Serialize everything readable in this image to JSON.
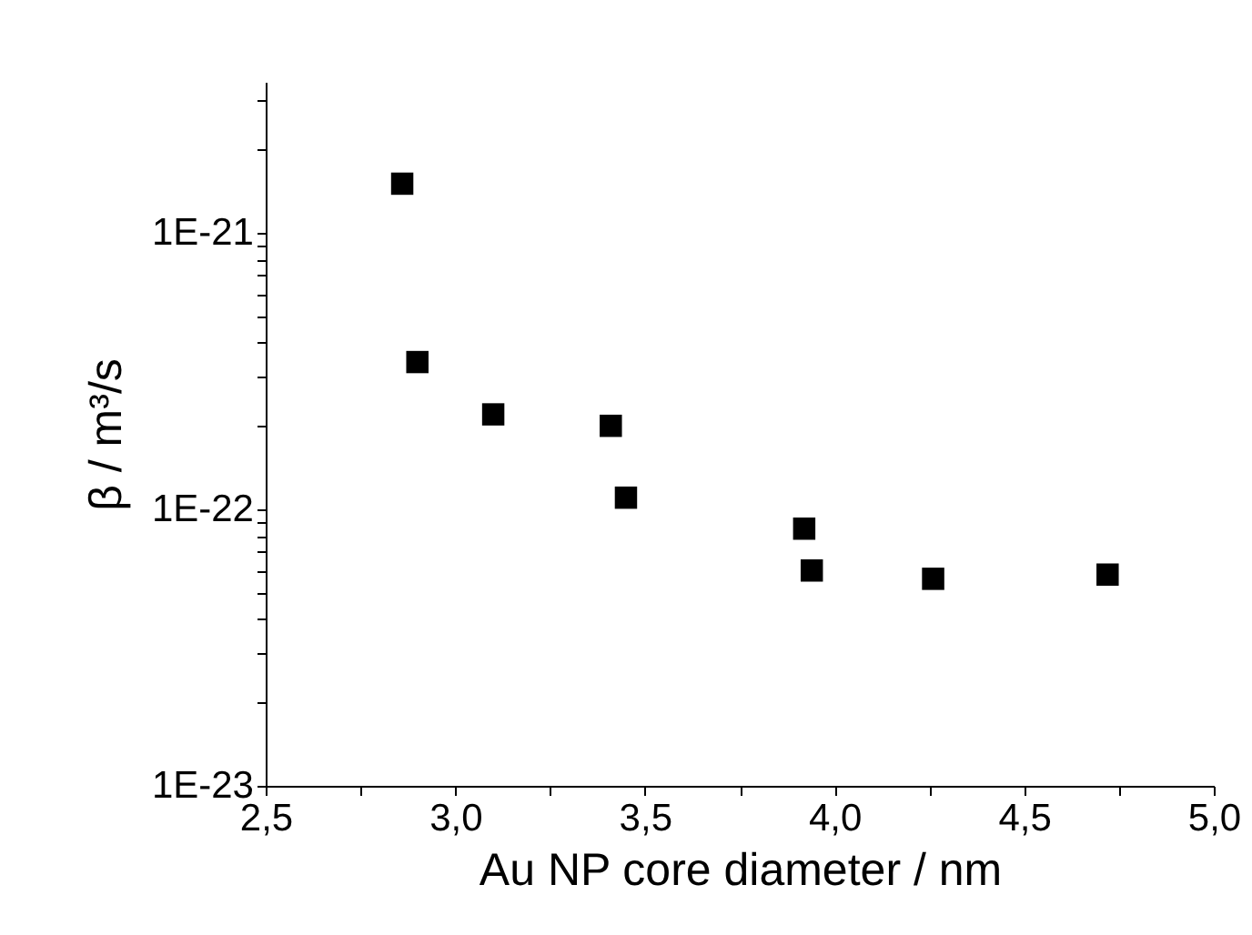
{
  "chart_data": {
    "type": "scatter",
    "xlabel": "Au NP core diameter / nm",
    "ylabel": "β / m³/s",
    "log": "y",
    "marker": "square",
    "grid": false,
    "xlim": [
      2.5,
      5.0
    ],
    "xticks": [
      {
        "value": 2.5,
        "label": "2,5"
      },
      {
        "value": 2.75,
        "label": null
      },
      {
        "value": 3.0,
        "label": "3,0"
      },
      {
        "value": 3.25,
        "label": null
      },
      {
        "value": 3.5,
        "label": "3,5"
      },
      {
        "value": 3.75,
        "label": null
      },
      {
        "value": 4.0,
        "label": "4,0"
      },
      {
        "value": 4.25,
        "label": null
      },
      {
        "value": 4.5,
        "label": "4,5"
      },
      {
        "value": 4.75,
        "label": null
      },
      {
        "value": 5.0,
        "label": "5,0"
      }
    ],
    "ylim": [
      1e-23,
      3.5e-21
    ],
    "yticks": [
      {
        "value": 1e-23,
        "label": "1E-23"
      },
      {
        "value": 2e-23,
        "label": null
      },
      {
        "value": 3e-23,
        "label": null
      },
      {
        "value": 4e-23,
        "label": null
      },
      {
        "value": 5e-23,
        "label": null
      },
      {
        "value": 6e-23,
        "label": null
      },
      {
        "value": 7e-23,
        "label": null
      },
      {
        "value": 8e-23,
        "label": null
      },
      {
        "value": 9e-23,
        "label": null
      },
      {
        "value": 1e-22,
        "label": "1E-22"
      },
      {
        "value": 2e-22,
        "label": null
      },
      {
        "value": 3e-22,
        "label": null
      },
      {
        "value": 4e-22,
        "label": null
      },
      {
        "value": 5e-22,
        "label": null
      },
      {
        "value": 6e-22,
        "label": null
      },
      {
        "value": 7e-22,
        "label": null
      },
      {
        "value": 8e-22,
        "label": null
      },
      {
        "value": 9e-22,
        "label": null
      },
      {
        "value": 1e-21,
        "label": "1E-21"
      },
      {
        "value": 2e-21,
        "label": null
      },
      {
        "value": 3e-21,
        "label": null
      }
    ],
    "series": [
      {
        "color": "#000000",
        "x": [
          2.86,
          2.9,
          3.1,
          3.41,
          3.45,
          3.92,
          3.94,
          4.26,
          4.72
        ],
        "values": [
          1.5e-21,
          3.4e-22,
          2.2e-22,
          2e-22,
          1.1e-22,
          8.5e-23,
          6e-23,
          5.6e-23,
          5.8e-23
        ]
      }
    ]
  }
}
